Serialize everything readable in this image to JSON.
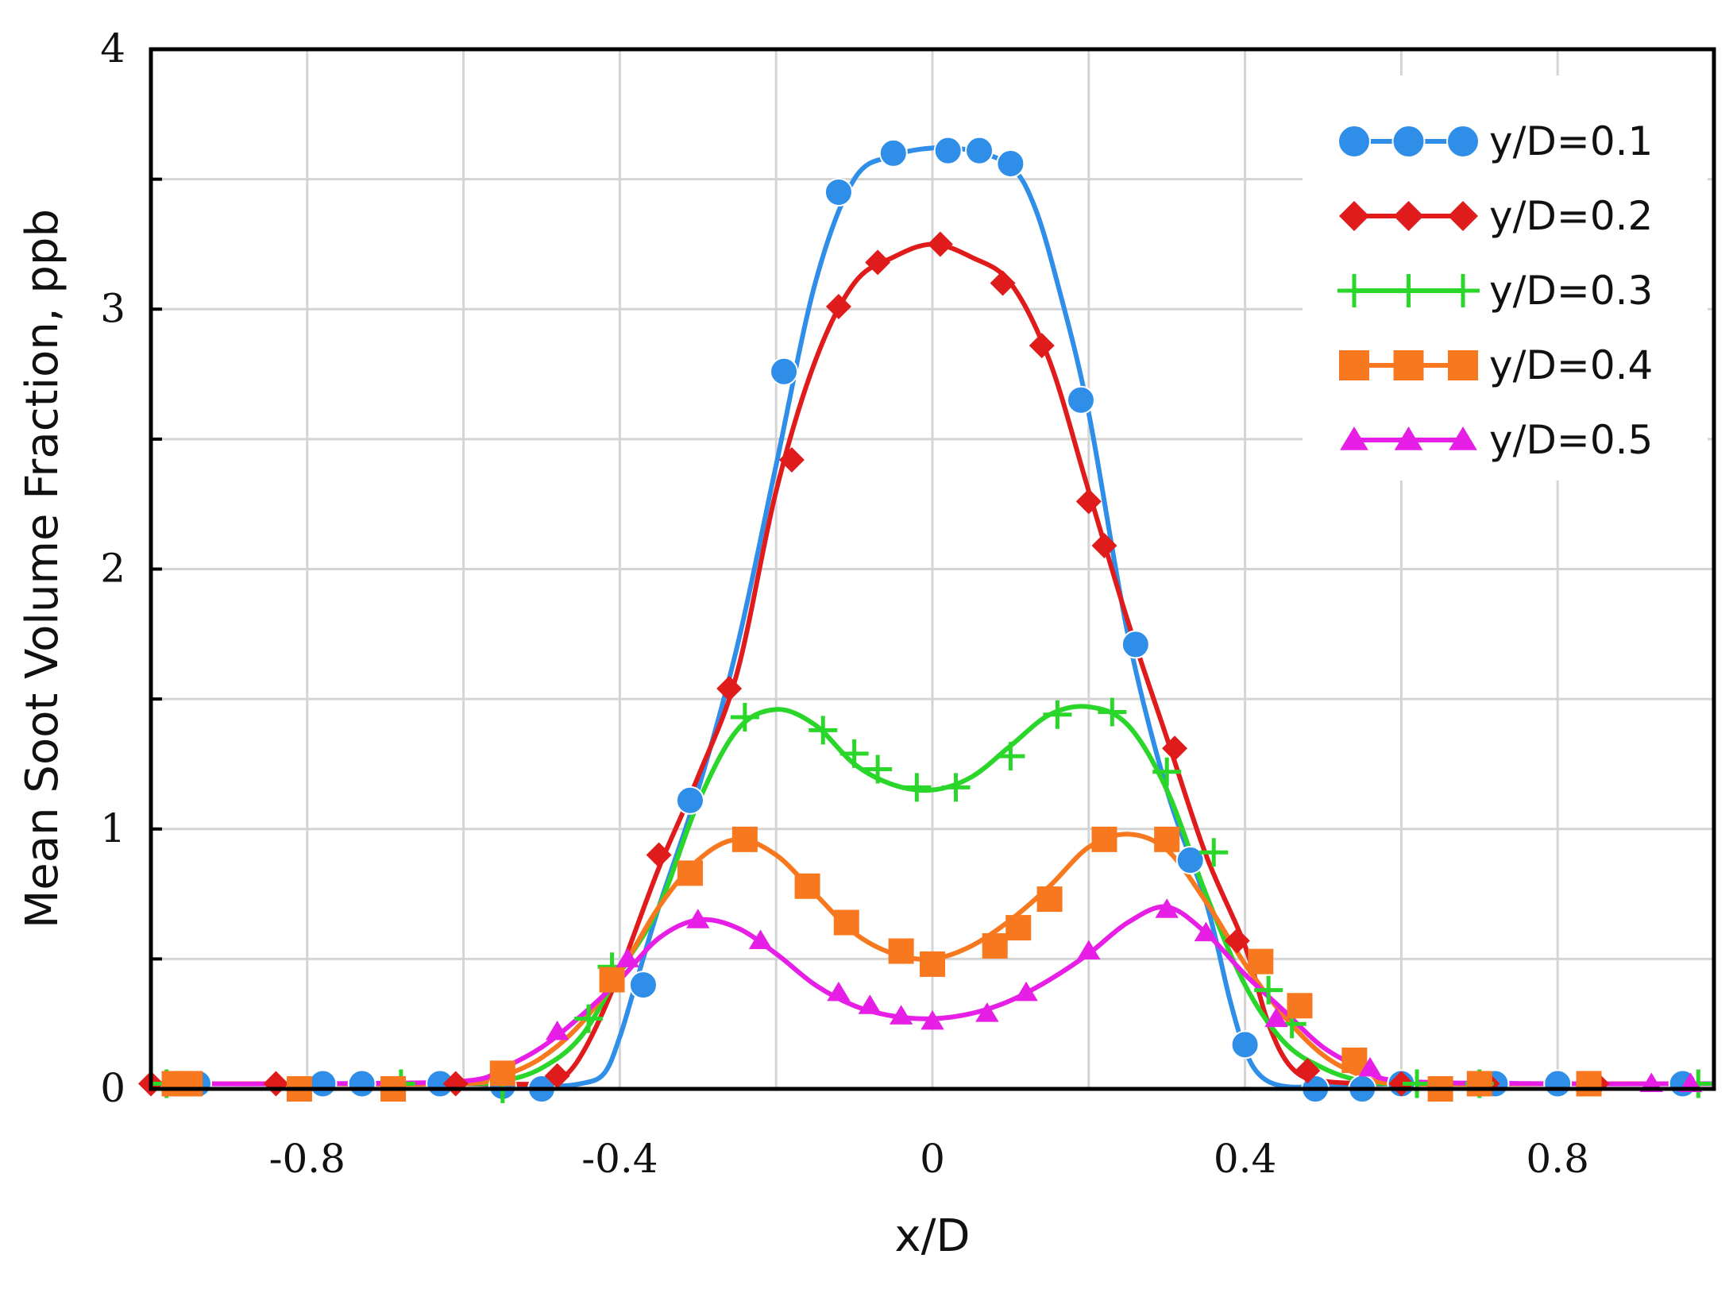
{
  "chart_data": {
    "type": "line",
    "title": "",
    "xlabel": "x/D",
    "ylabel": "Mean Soot Volume Fraction, ppb",
    "xlim": [
      -1.0,
      1.0
    ],
    "ylim": [
      0,
      4
    ],
    "x_ticks": [
      -0.8,
      -0.4,
      0,
      0.4,
      0.8
    ],
    "x_tick_labels": [
      "-0.8",
      "-0.4",
      "0",
      "0.4",
      "0.8"
    ],
    "y_ticks": [
      0,
      1,
      2,
      3,
      4
    ],
    "y_tick_labels": [
      "0",
      "1",
      "2",
      "3",
      "4"
    ],
    "grid": true,
    "legend_position": "top-right",
    "series": [
      {
        "name": "y/D=0.1",
        "color": "#2f8ee8",
        "marker": "circle",
        "line_x": [
          -1.0,
          -0.9,
          -0.8,
          -0.7,
          -0.6,
          -0.5,
          -0.45,
          -0.42,
          -0.4,
          -0.38,
          -0.35,
          -0.3,
          -0.25,
          -0.2,
          -0.15,
          -0.1,
          -0.05,
          0.0,
          0.05,
          0.1,
          0.13,
          0.16,
          0.2,
          0.25,
          0.3,
          0.35,
          0.38,
          0.4,
          0.42,
          0.45,
          0.5,
          0.6,
          0.8,
          1.0
        ],
        "line_y": [
          0.02,
          0.02,
          0.02,
          0.02,
          0.02,
          0.01,
          0.02,
          0.06,
          0.2,
          0.4,
          0.7,
          1.15,
          1.7,
          2.4,
          3.1,
          3.5,
          3.59,
          3.62,
          3.61,
          3.55,
          3.4,
          3.1,
          2.6,
          1.75,
          1.15,
          0.72,
          0.35,
          0.15,
          0.05,
          0.01,
          0.01,
          0.02,
          0.02,
          0.02
        ],
        "marker_x": [
          -0.94,
          -0.78,
          -0.73,
          -0.63,
          -0.55,
          -0.5,
          -0.37,
          -0.31,
          -0.19,
          -0.12,
          -0.05,
          0.02,
          0.06,
          0.1,
          0.19,
          0.26,
          0.33,
          0.4,
          0.49,
          0.55,
          0.6,
          0.72,
          0.8,
          0.96
        ],
        "marker_y": [
          0.02,
          0.02,
          0.02,
          0.02,
          0.01,
          0.0,
          0.4,
          1.11,
          2.76,
          3.45,
          3.6,
          3.61,
          3.61,
          3.56,
          2.65,
          1.71,
          0.88,
          0.17,
          0.0,
          0.0,
          0.02,
          0.02,
          0.02,
          0.02
        ]
      },
      {
        "name": "y/D=0.2",
        "color": "#e01b1b",
        "marker": "diamond",
        "line_x": [
          -1.0,
          -0.8,
          -0.6,
          -0.5,
          -0.47,
          -0.44,
          -0.4,
          -0.35,
          -0.3,
          -0.25,
          -0.2,
          -0.15,
          -0.1,
          -0.05,
          0.0,
          0.05,
          0.1,
          0.15,
          0.2,
          0.25,
          0.3,
          0.35,
          0.4,
          0.43,
          0.46,
          0.5,
          0.6,
          0.8,
          1.0
        ],
        "line_y": [
          0.02,
          0.02,
          0.02,
          0.02,
          0.05,
          0.18,
          0.45,
          0.85,
          1.2,
          1.6,
          2.3,
          2.8,
          3.1,
          3.2,
          3.25,
          3.2,
          3.1,
          2.8,
          2.3,
          1.8,
          1.35,
          0.9,
          0.55,
          0.25,
          0.08,
          0.03,
          0.02,
          0.02,
          0.02
        ],
        "marker_x": [
          -1.0,
          -0.84,
          -0.61,
          -0.48,
          -0.35,
          -0.26,
          -0.18,
          -0.12,
          -0.07,
          0.01,
          0.09,
          0.14,
          0.2,
          0.22,
          0.31,
          0.39,
          0.48,
          0.6,
          0.71,
          0.85
        ],
        "marker_y": [
          0.02,
          0.02,
          0.02,
          0.05,
          0.9,
          1.54,
          2.42,
          3.01,
          3.18,
          3.25,
          3.1,
          2.86,
          2.26,
          2.09,
          1.31,
          0.57,
          0.07,
          0.02,
          0.02,
          0.02
        ]
      },
      {
        "name": "y/D=0.3",
        "color": "#2ad62a",
        "marker": "plus",
        "line_x": [
          -1.0,
          -0.8,
          -0.6,
          -0.55,
          -0.5,
          -0.45,
          -0.4,
          -0.35,
          -0.3,
          -0.25,
          -0.2,
          -0.15,
          -0.1,
          -0.05,
          0.0,
          0.05,
          0.1,
          0.15,
          0.2,
          0.25,
          0.3,
          0.35,
          0.4,
          0.45,
          0.5,
          0.55,
          0.6,
          0.8,
          1.0
        ],
        "line_y": [
          0.02,
          0.02,
          0.02,
          0.03,
          0.08,
          0.2,
          0.45,
          0.7,
          1.1,
          1.38,
          1.46,
          1.4,
          1.25,
          1.17,
          1.15,
          1.2,
          1.32,
          1.44,
          1.47,
          1.4,
          1.15,
          0.75,
          0.4,
          0.18,
          0.08,
          0.03,
          0.02,
          0.02,
          0.02
        ],
        "marker_x": [
          -0.98,
          -0.68,
          -0.55,
          -0.44,
          -0.41,
          -0.24,
          -0.14,
          -0.1,
          -0.07,
          -0.02,
          0.03,
          0.1,
          0.16,
          0.23,
          0.3,
          0.36,
          0.43,
          0.46,
          0.62,
          0.7,
          0.98
        ],
        "marker_y": [
          0.02,
          0.02,
          0.0,
          0.27,
          0.47,
          1.43,
          1.38,
          1.29,
          1.23,
          1.16,
          1.16,
          1.28,
          1.44,
          1.45,
          1.22,
          0.91,
          0.38,
          0.25,
          0.02,
          0.02,
          0.02
        ]
      },
      {
        "name": "y/D=0.4",
        "color": "#f7781e",
        "marker": "square",
        "line_x": [
          -1.0,
          -0.8,
          -0.6,
          -0.55,
          -0.5,
          -0.45,
          -0.4,
          -0.35,
          -0.3,
          -0.25,
          -0.2,
          -0.15,
          -0.1,
          -0.05,
          0.0,
          0.05,
          0.1,
          0.15,
          0.2,
          0.25,
          0.3,
          0.35,
          0.4,
          0.45,
          0.5,
          0.55,
          0.6,
          0.8,
          1.0
        ],
        "line_y": [
          0.02,
          0.02,
          0.02,
          0.05,
          0.12,
          0.25,
          0.45,
          0.7,
          0.88,
          0.96,
          0.9,
          0.75,
          0.6,
          0.52,
          0.5,
          0.55,
          0.65,
          0.78,
          0.93,
          0.98,
          0.92,
          0.72,
          0.48,
          0.28,
          0.13,
          0.05,
          0.02,
          0.02,
          0.02
        ],
        "marker_x": [
          -0.97,
          -0.95,
          -0.81,
          -0.69,
          -0.55,
          -0.41,
          -0.31,
          -0.24,
          -0.16,
          -0.11,
          -0.04,
          0.0,
          0.08,
          0.11,
          0.15,
          0.22,
          0.3,
          0.42,
          0.47,
          0.54,
          0.65,
          0.7,
          0.84
        ],
        "marker_y": [
          0.02,
          0.02,
          0.0,
          0.0,
          0.06,
          0.42,
          0.83,
          0.96,
          0.78,
          0.64,
          0.53,
          0.48,
          0.55,
          0.62,
          0.73,
          0.96,
          0.96,
          0.49,
          0.32,
          0.11,
          0.0,
          0.02,
          0.02
        ]
      },
      {
        "name": "y/D=0.5",
        "color": "#e61ee6",
        "marker": "triangle",
        "line_x": [
          -1.0,
          -0.8,
          -0.6,
          -0.55,
          -0.5,
          -0.45,
          -0.4,
          -0.35,
          -0.3,
          -0.25,
          -0.2,
          -0.15,
          -0.1,
          -0.05,
          0.0,
          0.05,
          0.1,
          0.15,
          0.2,
          0.25,
          0.3,
          0.35,
          0.4,
          0.45,
          0.5,
          0.55,
          0.6,
          0.8,
          1.0
        ],
        "line_y": [
          0.02,
          0.02,
          0.03,
          0.08,
          0.16,
          0.28,
          0.42,
          0.58,
          0.65,
          0.62,
          0.52,
          0.4,
          0.32,
          0.28,
          0.27,
          0.29,
          0.34,
          0.42,
          0.52,
          0.64,
          0.7,
          0.6,
          0.44,
          0.3,
          0.16,
          0.08,
          0.03,
          0.02,
          0.02
        ],
        "marker_x": [
          -0.48,
          -0.39,
          -0.3,
          -0.22,
          -0.12,
          -0.08,
          -0.04,
          0.0,
          0.07,
          0.12,
          0.2,
          0.3,
          0.35,
          0.44,
          0.56,
          0.92,
          0.97
        ],
        "marker_y": [
          0.22,
          0.5,
          0.65,
          0.57,
          0.37,
          0.32,
          0.28,
          0.26,
          0.29,
          0.37,
          0.53,
          0.69,
          0.6,
          0.27,
          0.08,
          0.02,
          0.02
        ]
      }
    ]
  }
}
